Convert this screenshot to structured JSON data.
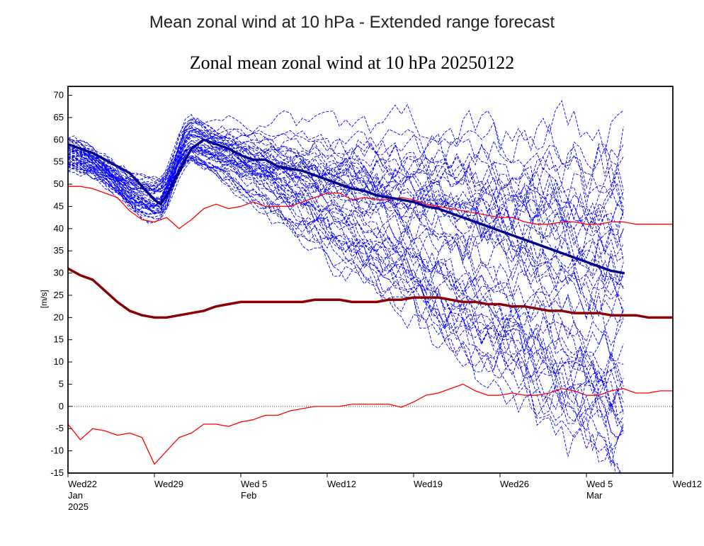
{
  "page_title": "Mean zonal wind at 10 hPa - Extended range forecast",
  "chart": {
    "type": "line-ensemble",
    "title": "Zonal mean zonal wind at 10 hPa 20250122",
    "title_fontsize": 26,
    "ylabel": "[m/s]",
    "label_fontsize": 12,
    "background_color": "#ffffff",
    "border_color": "#000000",
    "zero_line_color": "#444444",
    "zero_line_dash": "1,2",
    "xaxis": {
      "min": 0,
      "max": 49,
      "ticks": [
        0,
        7,
        14,
        21,
        28,
        35,
        42,
        49
      ],
      "tick_labels_top": [
        "Wed22",
        "Wed29",
        "Wed 5",
        "Wed12",
        "Wed19",
        "Wed26",
        "Wed 5",
        "Wed12"
      ],
      "tick_labels_mid": [
        "Jan",
        "",
        "Feb",
        "",
        "",
        "",
        "Mar",
        ""
      ],
      "tick_labels_bot": [
        "2025",
        "",
        "",
        "",
        "",
        "",
        "",
        ""
      ]
    },
    "yaxis": {
      "min": -15,
      "max": 72,
      "ticks": [
        -15,
        -10,
        -5,
        0,
        5,
        10,
        15,
        20,
        25,
        30,
        35,
        40,
        45,
        50,
        55,
        60,
        65,
        70
      ]
    },
    "ensemble": {
      "color": "#0000ff",
      "line_width": 0.9,
      "dash": "4,2",
      "count": 50,
      "start_window": [
        52,
        60
      ],
      "dip_center_day": 7.2,
      "dip_window": [
        42,
        51
      ],
      "rise_center_day": 10,
      "rise_window": [
        55,
        65
      ],
      "spread_start_day": 11,
      "end_spread": [
        -17,
        62
      ],
      "noise_amp_early": 1.0,
      "noise_amp_late": 6.0,
      "series_cutoff_day": 45
    },
    "ensemble_mean": {
      "color": "#00008b",
      "line_width": 3.5,
      "points": [
        [
          0,
          59
        ],
        [
          1,
          58
        ],
        [
          2,
          57
        ],
        [
          3,
          55.5
        ],
        [
          4,
          54
        ],
        [
          5,
          52.5
        ],
        [
          6,
          49.5
        ],
        [
          7,
          46.5
        ],
        [
          7.5,
          45.5
        ],
        [
          8,
          47.5
        ],
        [
          9,
          53
        ],
        [
          10,
          58
        ],
        [
          11,
          60
        ],
        [
          12,
          59
        ],
        [
          13,
          58
        ],
        [
          14,
          56.5
        ],
        [
          15,
          55.5
        ],
        [
          16,
          55.5
        ],
        [
          17,
          54
        ],
        [
          18,
          53.5
        ],
        [
          19,
          53
        ],
        [
          20,
          52
        ],
        [
          21,
          51
        ],
        [
          22,
          50
        ],
        [
          23,
          49
        ],
        [
          24,
          48.5
        ],
        [
          25,
          47.5
        ],
        [
          26,
          47
        ],
        [
          27,
          46.5
        ],
        [
          28,
          46
        ],
        [
          29,
          45
        ],
        [
          30,
          44.5
        ],
        [
          31,
          43.5
        ],
        [
          32,
          42.5
        ],
        [
          33,
          41.5
        ],
        [
          34,
          40.5
        ],
        [
          35,
          39.5
        ],
        [
          36,
          38.5
        ],
        [
          37,
          37.5
        ],
        [
          38,
          36.5
        ],
        [
          39,
          35.5
        ],
        [
          40,
          34.5
        ],
        [
          41,
          33.5
        ],
        [
          42,
          32.5
        ],
        [
          43,
          31.5
        ],
        [
          44,
          30.5
        ],
        [
          45,
          30
        ]
      ]
    },
    "climatology_mean": {
      "color": "#8b0000",
      "line_width": 3.5,
      "points": [
        [
          0,
          31
        ],
        [
          1,
          29.5
        ],
        [
          2,
          28.5
        ],
        [
          3,
          26
        ],
        [
          4,
          23.5
        ],
        [
          5,
          21.5
        ],
        [
          6,
          20.5
        ],
        [
          7,
          20
        ],
        [
          8,
          20
        ],
        [
          9,
          20.5
        ],
        [
          10,
          21
        ],
        [
          11,
          21.5
        ],
        [
          12,
          22.5
        ],
        [
          13,
          23
        ],
        [
          14,
          23.5
        ],
        [
          15,
          23.5
        ],
        [
          16,
          23.5
        ],
        [
          17,
          23.5
        ],
        [
          18,
          23.5
        ],
        [
          19,
          23.5
        ],
        [
          20,
          24
        ],
        [
          21,
          24
        ],
        [
          22,
          24
        ],
        [
          23,
          23.5
        ],
        [
          24,
          23.5
        ],
        [
          25,
          23.5
        ],
        [
          26,
          24
        ],
        [
          27,
          24
        ],
        [
          28,
          24.5
        ],
        [
          29,
          24.5
        ],
        [
          30,
          24.5
        ],
        [
          31,
          24
        ],
        [
          32,
          23.5
        ],
        [
          33,
          23.5
        ],
        [
          34,
          23
        ],
        [
          35,
          23
        ],
        [
          36,
          22.5
        ],
        [
          37,
          22.5
        ],
        [
          38,
          22
        ],
        [
          39,
          21.5
        ],
        [
          40,
          21.5
        ],
        [
          41,
          21
        ],
        [
          42,
          21
        ],
        [
          43,
          21
        ],
        [
          44,
          20.5
        ],
        [
          45,
          20.5
        ],
        [
          46,
          20.5
        ],
        [
          47,
          20
        ],
        [
          48,
          20
        ],
        [
          49,
          20
        ]
      ]
    },
    "climatology_upper": {
      "color": "#ff0000",
      "line_width": 1.3,
      "points": [
        [
          0,
          49.5
        ],
        [
          1,
          49.5
        ],
        [
          2,
          49
        ],
        [
          3,
          48
        ],
        [
          4,
          47
        ],
        [
          5,
          44
        ],
        [
          6,
          42
        ],
        [
          7,
          41.5
        ],
        [
          8,
          42.5
        ],
        [
          9,
          40
        ],
        [
          10,
          42
        ],
        [
          11,
          44.5
        ],
        [
          12,
          45.5
        ],
        [
          13,
          44.5
        ],
        [
          14,
          45
        ],
        [
          15,
          46
        ],
        [
          16,
          45
        ],
        [
          17,
          45
        ],
        [
          18,
          45
        ],
        [
          19,
          46
        ],
        [
          20,
          47
        ],
        [
          21,
          48
        ],
        [
          22,
          48
        ],
        [
          23,
          46.5
        ],
        [
          24,
          47
        ],
        [
          25,
          46.5
        ],
        [
          26,
          46.5
        ],
        [
          27,
          47
        ],
        [
          28,
          46.5
        ],
        [
          29,
          45.5
        ],
        [
          30,
          45
        ],
        [
          31,
          44.5
        ],
        [
          32,
          44
        ],
        [
          33,
          43.5
        ],
        [
          34,
          43
        ],
        [
          35,
          42.5
        ],
        [
          36,
          42.5
        ],
        [
          37,
          41.5
        ],
        [
          38,
          41
        ],
        [
          39,
          41
        ],
        [
          40,
          41.5
        ],
        [
          41,
          41.5
        ],
        [
          42,
          41
        ],
        [
          43,
          41
        ],
        [
          44,
          41.5
        ],
        [
          45,
          41.5
        ],
        [
          46,
          41
        ],
        [
          47,
          41
        ],
        [
          48,
          41
        ],
        [
          49,
          41
        ]
      ]
    },
    "climatology_lower": {
      "color": "#ff0000",
      "line_width": 1.3,
      "points": [
        [
          0,
          -4
        ],
        [
          1,
          -7.5
        ],
        [
          2,
          -5
        ],
        [
          3,
          -5.5
        ],
        [
          4,
          -6.5
        ],
        [
          5,
          -6
        ],
        [
          6,
          -7
        ],
        [
          7,
          -13
        ],
        [
          8,
          -10
        ],
        [
          9,
          -7
        ],
        [
          10,
          -6
        ],
        [
          11,
          -4
        ],
        [
          12,
          -4
        ],
        [
          13,
          -4.5
        ],
        [
          14,
          -3.5
        ],
        [
          15,
          -3
        ],
        [
          16,
          -2
        ],
        [
          17,
          -2
        ],
        [
          18,
          -1
        ],
        [
          19,
          -0.5
        ],
        [
          20,
          0
        ],
        [
          21,
          0
        ],
        [
          22,
          0
        ],
        [
          23,
          0.5
        ],
        [
          24,
          0.5
        ],
        [
          25,
          0.5
        ],
        [
          26,
          0.5
        ],
        [
          27,
          -0.2
        ],
        [
          28,
          1
        ],
        [
          29,
          2.5
        ],
        [
          30,
          3
        ],
        [
          31,
          4
        ],
        [
          32,
          5
        ],
        [
          33,
          3.5
        ],
        [
          34,
          2.5
        ],
        [
          35,
          2.5
        ],
        [
          36,
          3
        ],
        [
          37,
          2.5
        ],
        [
          38,
          2.5
        ],
        [
          39,
          3
        ],
        [
          40,
          4
        ],
        [
          41,
          3.5
        ],
        [
          42,
          2.5
        ],
        [
          43,
          2.5
        ],
        [
          44,
          3.5
        ],
        [
          45,
          4
        ],
        [
          46,
          3
        ],
        [
          47,
          3
        ],
        [
          48,
          3.5
        ],
        [
          49,
          3.5
        ]
      ]
    }
  }
}
